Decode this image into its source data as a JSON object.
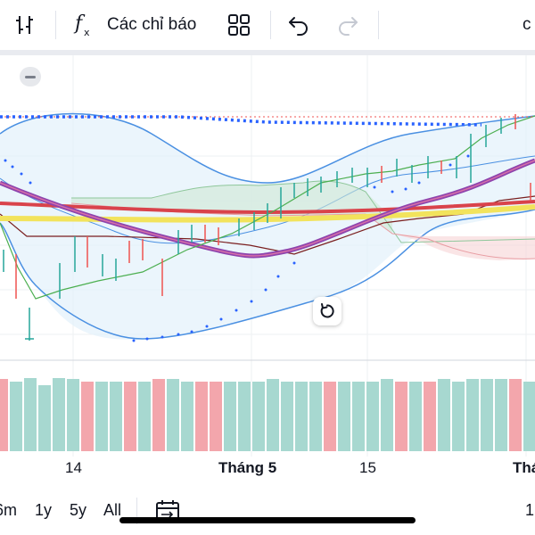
{
  "toolbar": {
    "indicators_label": "Các chỉ báo",
    "right_partial_label": "c"
  },
  "axis": {
    "labels": [
      "14",
      "Tháng 5",
      "15",
      "Thá"
    ]
  },
  "range": {
    "buttons": [
      "6m",
      "1y",
      "5y",
      "All"
    ],
    "right_partial": "1"
  },
  "icons": {
    "bar_style": "candle-bars-icon",
    "indicators": "fx-icon",
    "templates": "grid-icon",
    "undo": "undo-icon",
    "redo": "redo-icon",
    "reset": "reset-chart-icon",
    "calendar": "date-range-icon",
    "collapse": "collapse-pane-icon"
  },
  "colors": {
    "up": "#26a69a",
    "down": "#ef5350",
    "volume_up": "#a7d8d0",
    "volume_down": "#f3a6ac",
    "bollinger": "#4a90e2",
    "ma_purple": "#8e44ad",
    "ma_red": "#d9434b",
    "ma_yellow": "#f2e35c",
    "psar": "#2962ff"
  }
}
